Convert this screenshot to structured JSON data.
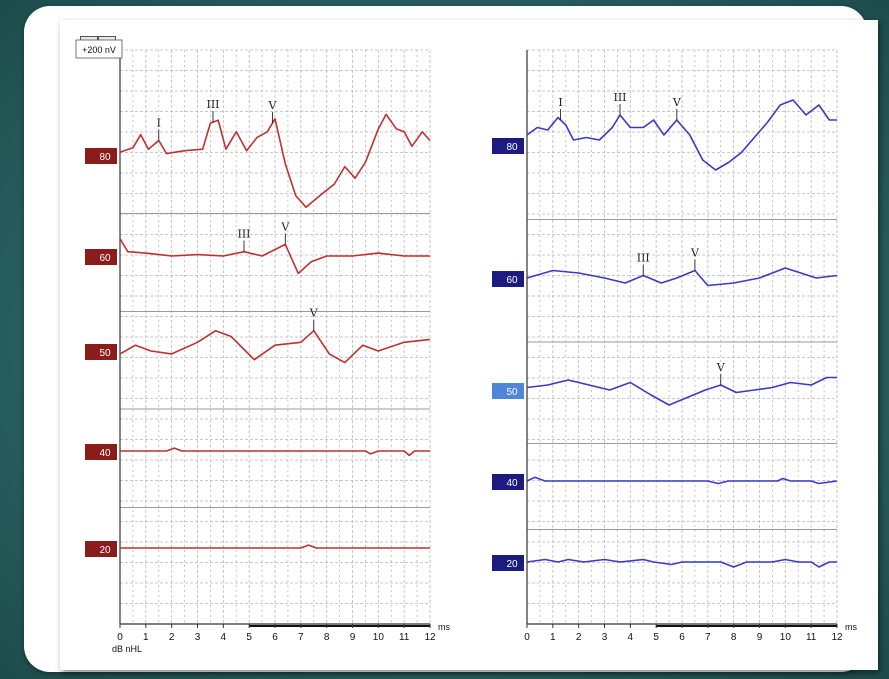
{
  "chart_data": [
    {
      "type": "line",
      "panel": "left",
      "scale_label": "+200 nV",
      "x_unit": "ms",
      "x_axis_label": "dB nHL",
      "xlim": [
        0,
        12
      ],
      "x_ticks": [
        0,
        1,
        2,
        3,
        4,
        5,
        6,
        7,
        8,
        9,
        10,
        11,
        12
      ],
      "color": "#c03030",
      "series": [
        {
          "name": "80",
          "label_color": "#8b1c1c",
          "points": [
            [
              0,
              2
            ],
            [
              0.5,
              5
            ],
            [
              0.8,
              14
            ],
            [
              1.1,
              4
            ],
            [
              1.5,
              10
            ],
            [
              1.8,
              1
            ],
            [
              2.5,
              3
            ],
            [
              3.2,
              4
            ],
            [
              3.5,
              22
            ],
            [
              3.8,
              24
            ],
            [
              4.1,
              4
            ],
            [
              4.5,
              16
            ],
            [
              4.9,
              3
            ],
            [
              5.3,
              12
            ],
            [
              5.7,
              16
            ],
            [
              6,
              25
            ],
            [
              6.4,
              -6
            ],
            [
              6.8,
              -28
            ],
            [
              7.2,
              -36
            ],
            [
              7.8,
              -27
            ],
            [
              8.3,
              -20
            ],
            [
              8.7,
              -8
            ],
            [
              9.1,
              -16
            ],
            [
              9.5,
              -5
            ],
            [
              10,
              18
            ],
            [
              10.3,
              28
            ],
            [
              10.7,
              18
            ],
            [
              11,
              16
            ],
            [
              11.3,
              6
            ],
            [
              11.7,
              16
            ],
            [
              12,
              10
            ]
          ],
          "peaks": [
            {
              "label": "I",
              "x": 1.5
            },
            {
              "label": "III",
              "x": 3.6
            },
            {
              "label": "V",
              "x": 5.9
            }
          ]
        },
        {
          "name": "60",
          "label_color": "#8b1c1c",
          "points": [
            [
              0,
              12
            ],
            [
              0.3,
              3
            ],
            [
              1,
              2
            ],
            [
              2,
              0
            ],
            [
              3,
              1
            ],
            [
              4,
              0
            ],
            [
              4.8,
              3
            ],
            [
              5.5,
              0
            ],
            [
              6.4,
              8
            ],
            [
              6.9,
              -12
            ],
            [
              7.4,
              -4
            ],
            [
              8,
              0
            ],
            [
              9,
              0
            ],
            [
              10,
              2
            ],
            [
              11,
              0
            ],
            [
              12,
              0
            ]
          ],
          "peaks": [
            {
              "label": "III",
              "x": 4.8
            },
            {
              "label": "V",
              "x": 6.4
            }
          ]
        },
        {
          "name": "50",
          "label_color": "#8b1c1c",
          "points": [
            [
              0,
              -2
            ],
            [
              0.6,
              4
            ],
            [
              1.2,
              0
            ],
            [
              2,
              -2
            ],
            [
              3,
              6
            ],
            [
              3.7,
              14
            ],
            [
              4.3,
              10
            ],
            [
              5.2,
              -6
            ],
            [
              6,
              4
            ],
            [
              7,
              6
            ],
            [
              7.5,
              14
            ],
            [
              8.1,
              -2
            ],
            [
              8.7,
              -8
            ],
            [
              9.4,
              4
            ],
            [
              10,
              0
            ],
            [
              11,
              6
            ],
            [
              12,
              8
            ]
          ],
          "peaks": [
            {
              "label": "V",
              "x": 7.5
            }
          ]
        },
        {
          "name": "40",
          "label_color": "#8b1c1c",
          "points": [
            [
              0,
              0
            ],
            [
              1.8,
              0
            ],
            [
              2.1,
              2
            ],
            [
              2.4,
              0
            ],
            [
              9.5,
              0
            ],
            [
              9.7,
              -2
            ],
            [
              10,
              0
            ],
            [
              11,
              0
            ],
            [
              11.2,
              -3
            ],
            [
              11.4,
              0
            ],
            [
              12,
              0
            ]
          ],
          "peaks": []
        },
        {
          "name": "20",
          "label_color": "#8b1c1c",
          "points": [
            [
              0,
              0
            ],
            [
              7,
              0
            ],
            [
              7.3,
              2
            ],
            [
              7.6,
              0
            ],
            [
              12,
              0
            ]
          ],
          "peaks": []
        }
      ]
    },
    {
      "type": "line",
      "panel": "right",
      "x_unit": "ms",
      "xlim": [
        0,
        12
      ],
      "x_ticks": [
        0,
        1,
        2,
        3,
        4,
        5,
        6,
        7,
        8,
        9,
        10,
        11,
        12
      ],
      "color": "#3a3ac8",
      "series": [
        {
          "name": "80",
          "label_color": "#1c1c80",
          "points": [
            [
              0,
              8
            ],
            [
              0.4,
              14
            ],
            [
              0.8,
              12
            ],
            [
              1.2,
              22
            ],
            [
              1.5,
              16
            ],
            [
              1.8,
              4
            ],
            [
              2.3,
              6
            ],
            [
              2.8,
              4
            ],
            [
              3.3,
              14
            ],
            [
              3.6,
              24
            ],
            [
              4,
              14
            ],
            [
              4.5,
              14
            ],
            [
              4.9,
              20
            ],
            [
              5.3,
              8
            ],
            [
              5.8,
              20
            ],
            [
              6.3,
              8
            ],
            [
              6.8,
              -12
            ],
            [
              7.3,
              -20
            ],
            [
              7.8,
              -14
            ],
            [
              8.3,
              -6
            ],
            [
              8.8,
              6
            ],
            [
              9.3,
              18
            ],
            [
              9.8,
              32
            ],
            [
              10.3,
              36
            ],
            [
              10.8,
              24
            ],
            [
              11.3,
              32
            ],
            [
              11.7,
              20
            ],
            [
              12,
              20
            ]
          ],
          "peaks": [
            {
              "label": "I",
              "x": 1.3
            },
            {
              "label": "III",
              "x": 3.6
            },
            {
              "label": "V",
              "x": 5.8
            }
          ]
        },
        {
          "name": "60",
          "label_color": "#1c1c80",
          "points": [
            [
              0,
              0
            ],
            [
              1,
              6
            ],
            [
              2,
              4
            ],
            [
              3,
              0
            ],
            [
              3.8,
              -4
            ],
            [
              4.5,
              2
            ],
            [
              5.2,
              -4
            ],
            [
              5.8,
              0
            ],
            [
              6.5,
              6
            ],
            [
              7,
              -6
            ],
            [
              8,
              -4
            ],
            [
              9,
              0
            ],
            [
              10,
              8
            ],
            [
              10.6,
              4
            ],
            [
              11.2,
              0
            ],
            [
              12,
              2
            ]
          ],
          "peaks": [
            {
              "label": "III",
              "x": 4.5
            },
            {
              "label": "V",
              "x": 6.5
            }
          ]
        },
        {
          "name": "50",
          "label_color": "#1c1c80",
          "points": [
            [
              0,
              2
            ],
            [
              0.8,
              4
            ],
            [
              1.6,
              8
            ],
            [
              2.4,
              4
            ],
            [
              3.2,
              0
            ],
            [
              4,
              6
            ],
            [
              4.8,
              -4
            ],
            [
              5.5,
              -12
            ],
            [
              6.2,
              -6
            ],
            [
              6.9,
              0
            ],
            [
              7.5,
              4
            ],
            [
              8.1,
              -2
            ],
            [
              8.8,
              0
            ],
            [
              9.5,
              2
            ],
            [
              10.2,
              6
            ],
            [
              11,
              4
            ],
            [
              11.6,
              10
            ],
            [
              12,
              10
            ]
          ],
          "peaks": [
            {
              "label": "V",
              "x": 7.5
            }
          ]
        },
        {
          "name": "40",
          "label_color": "#1c1c80",
          "points": [
            [
              0,
              0
            ],
            [
              0.3,
              3
            ],
            [
              0.7,
              0
            ],
            [
              4,
              0
            ],
            [
              7,
              0
            ],
            [
              7.4,
              -2
            ],
            [
              7.8,
              0
            ],
            [
              9.7,
              0
            ],
            [
              9.9,
              2
            ],
            [
              10.2,
              0
            ],
            [
              11,
              0
            ],
            [
              11.3,
              -2
            ],
            [
              12,
              0
            ]
          ],
          "peaks": []
        },
        {
          "name": "20",
          "label_color": "#1c1c80",
          "points": [
            [
              0,
              0
            ],
            [
              0.7,
              2
            ],
            [
              1.2,
              0
            ],
            [
              1.6,
              2
            ],
            [
              2.2,
              0
            ],
            [
              3,
              2
            ],
            [
              3.6,
              0
            ],
            [
              4.5,
              2
            ],
            [
              4.9,
              0
            ],
            [
              5.6,
              -2
            ],
            [
              6,
              0
            ],
            [
              7.5,
              0
            ],
            [
              8,
              -4
            ],
            [
              8.5,
              0
            ],
            [
              9.5,
              0
            ],
            [
              10,
              2
            ],
            [
              10.5,
              0
            ],
            [
              11,
              0
            ],
            [
              11.3,
              -4
            ],
            [
              11.7,
              0
            ],
            [
              12,
              0
            ]
          ],
          "peaks": []
        }
      ]
    }
  ]
}
